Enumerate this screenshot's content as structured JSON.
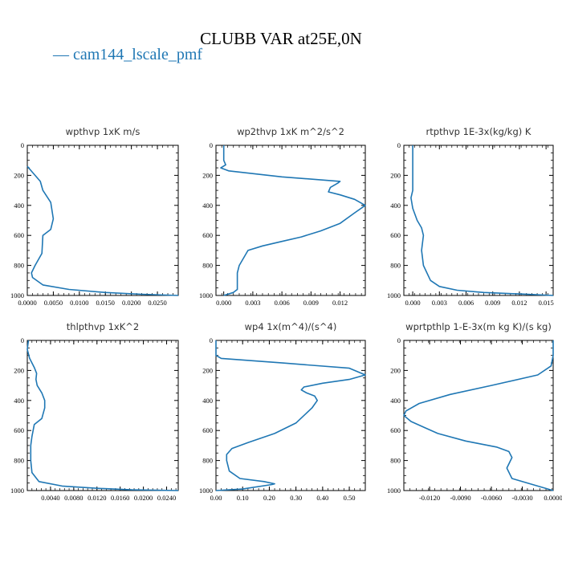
{
  "title": "CLUBB VAR at25E,0N",
  "legend": {
    "series_name": "cam144_lscale_pmf",
    "color": "#1f77b4"
  },
  "chart_data": [
    {
      "type": "line",
      "title": "wpthvp   1xK m/s",
      "xlim": [
        0,
        0.029
      ],
      "ylim": [
        1000,
        0
      ],
      "xticks": [
        0,
        0.005,
        0.01,
        0.015,
        0.02,
        0.025
      ],
      "xtick_labels": [
        "0.0000",
        "0.0050",
        "0.0100",
        "0.0150",
        "0.0200",
        "0.0250"
      ],
      "yticks": [
        0,
        200,
        400,
        600,
        800,
        1000
      ],
      "ytick_labels": [
        "0",
        "200",
        "400",
        "600",
        "800",
        "1000"
      ],
      "series": [
        {
          "x": [
            0,
            0.0005,
            0.0015,
            0.0025,
            0.003,
            0.0045,
            0.005,
            0.0045,
            0.003,
            0.0028,
            0.0015,
            0.0008,
            0.001,
            0.003,
            0.008,
            0.015,
            0.022,
            0.029
          ],
          "y": [
            140,
            160,
            200,
            240,
            300,
            380,
            490,
            560,
            600,
            720,
            800,
            850,
            880,
            930,
            960,
            980,
            992,
            1000
          ]
        }
      ]
    },
    {
      "type": "line",
      "title": "wp2thvp   1xK m^2/s^2",
      "xlim": [
        -0.0008,
        0.0146
      ],
      "ylim": [
        1000,
        0
      ],
      "xticks": [
        0,
        0.003,
        0.006,
        0.009,
        0.012
      ],
      "xtick_labels": [
        "0.000",
        "0.003",
        "0.006",
        "0.009",
        "0.012"
      ],
      "yticks": [
        0,
        200,
        400,
        600,
        800,
        1000
      ],
      "ytick_labels": [
        "0",
        "200",
        "400",
        "600",
        "800",
        "1000"
      ],
      "series": [
        {
          "x": [
            0,
            0,
            0.0002,
            -0.0003,
            0.0005,
            0.006,
            0.012,
            0.0118,
            0.011,
            0.0108,
            0.012,
            0.0135,
            0.0146,
            0.0135,
            0.012,
            0.01,
            0.008,
            0.006,
            0.004,
            0.0025,
            0.0016,
            0.0014,
            0.0014,
            0.0014,
            0.001,
            0
          ],
          "y": [
            0,
            100,
            130,
            150,
            170,
            210,
            240,
            250,
            280,
            310,
            330,
            360,
            400,
            450,
            520,
            570,
            610,
            640,
            670,
            700,
            800,
            850,
            900,
            960,
            980,
            1000
          ]
        }
      ]
    },
    {
      "type": "line",
      "title": "rtpthvp   1E-3x(kg/kg) K",
      "xlim": [
        -0.001,
        0.0158
      ],
      "ylim": [
        1000,
        0
      ],
      "xticks": [
        0,
        0.003,
        0.006,
        0.009,
        0.012,
        0.015
      ],
      "xtick_labels": [
        "0.000",
        "0.003",
        "0.006",
        "0.009",
        "0.012",
        "0.015"
      ],
      "yticks": [
        0,
        200,
        400,
        600,
        800,
        1000
      ],
      "ytick_labels": [
        "0",
        "200",
        "400",
        "600",
        "800",
        "1000"
      ],
      "series": [
        {
          "x": [
            0,
            0,
            0,
            0,
            -0.0002,
            0,
            0.0005,
            0.001,
            0.0012,
            0.001,
            0.0012,
            0.002,
            0.003,
            0.005,
            0.008,
            0.012,
            0.0158
          ],
          "y": [
            0,
            150,
            250,
            300,
            350,
            420,
            500,
            550,
            600,
            700,
            800,
            900,
            940,
            965,
            980,
            990,
            1000
          ]
        }
      ]
    },
    {
      "type": "line",
      "title": "thlpthvp   1xK^2",
      "xlim": [
        0,
        0.026
      ],
      "ylim": [
        1000,
        0
      ],
      "xticks": [
        0.004,
        0.008,
        0.012,
        0.016,
        0.02,
        0.024
      ],
      "xtick_labels": [
        "0.0040",
        "0.0080",
        "0.0120",
        "0.0160",
        "0.0200",
        "0.0240"
      ],
      "yticks": [
        0,
        200,
        400,
        600,
        800,
        1000
      ],
      "ytick_labels": [
        "0",
        "200",
        "400",
        "600",
        "800",
        "1000"
      ],
      "series": [
        {
          "x": [
            0.0002,
            0,
            0.0004,
            0.0012,
            0.0016,
            0.0015,
            0.0017,
            0.0025,
            0.003,
            0.003,
            0.0025,
            0.0012,
            0.0008,
            0.0006,
            0.0006,
            0.0008,
            0.002,
            0.006,
            0.012,
            0.018,
            0.026
          ],
          "y": [
            0,
            60,
            120,
            180,
            220,
            260,
            300,
            350,
            400,
            450,
            520,
            560,
            640,
            700,
            800,
            880,
            940,
            970,
            985,
            995,
            1000
          ]
        }
      ]
    },
    {
      "type": "line",
      "title": "wp4   1x(m^4)/(s^4)",
      "xlim": [
        0,
        0.56
      ],
      "ylim": [
        1000,
        0
      ],
      "xticks": [
        0,
        0.1,
        0.2,
        0.3,
        0.4,
        0.5
      ],
      "xtick_labels": [
        "0.00",
        "0.10",
        "0.20",
        "0.30",
        "0.40",
        "0.50"
      ],
      "yticks": [
        0,
        200,
        400,
        600,
        800,
        1000
      ],
      "ytick_labels": [
        "0",
        "200",
        "400",
        "600",
        "800",
        "1000"
      ],
      "series": [
        {
          "x": [
            0,
            0,
            0.02,
            0.25,
            0.5,
            0.56,
            0.5,
            0.4,
            0.33,
            0.32,
            0.34,
            0.37,
            0.38,
            0.36,
            0.3,
            0.22,
            0.12,
            0.06,
            0.04,
            0.04,
            0.05,
            0.09,
            0.18,
            0.22,
            0.21,
            0.1,
            0
          ],
          "y": [
            0,
            100,
            120,
            150,
            185,
            230,
            260,
            285,
            310,
            330,
            350,
            370,
            400,
            450,
            550,
            620,
            680,
            720,
            760,
            800,
            870,
            920,
            940,
            955,
            960,
            990,
            1000
          ]
        }
      ]
    },
    {
      "type": "line",
      "title": "wprtpthlp   1-E-3x(m kg K)/(s kg)",
      "xlim": [
        -0.0145,
        0
      ],
      "ylim": [
        1000,
        0
      ],
      "xticks": [
        -0.012,
        -0.009,
        -0.006,
        -0.003,
        0
      ],
      "xtick_labels": [
        "-0.0120",
        "-0.0090",
        "-0.0060",
        "-0.0030",
        "0.0000"
      ],
      "yticks": [
        0,
        200,
        400,
        600,
        800,
        1000
      ],
      "ytick_labels": [
        "0",
        "200",
        "400",
        "600",
        "800",
        "1000"
      ],
      "series": [
        {
          "x": [
            0,
            0,
            -0.0002,
            -0.0015,
            -0.006,
            -0.01,
            -0.013,
            -0.0143,
            -0.0145,
            -0.0138,
            -0.0125,
            -0.0112,
            -0.0085,
            -0.0055,
            -0.0043,
            -0.004,
            -0.0045,
            -0.004,
            -0.002,
            0
          ],
          "y": [
            0,
            100,
            170,
            230,
            300,
            360,
            420,
            470,
            500,
            540,
            580,
            620,
            670,
            710,
            740,
            780,
            850,
            920,
            960,
            1000
          ]
        }
      ]
    }
  ]
}
